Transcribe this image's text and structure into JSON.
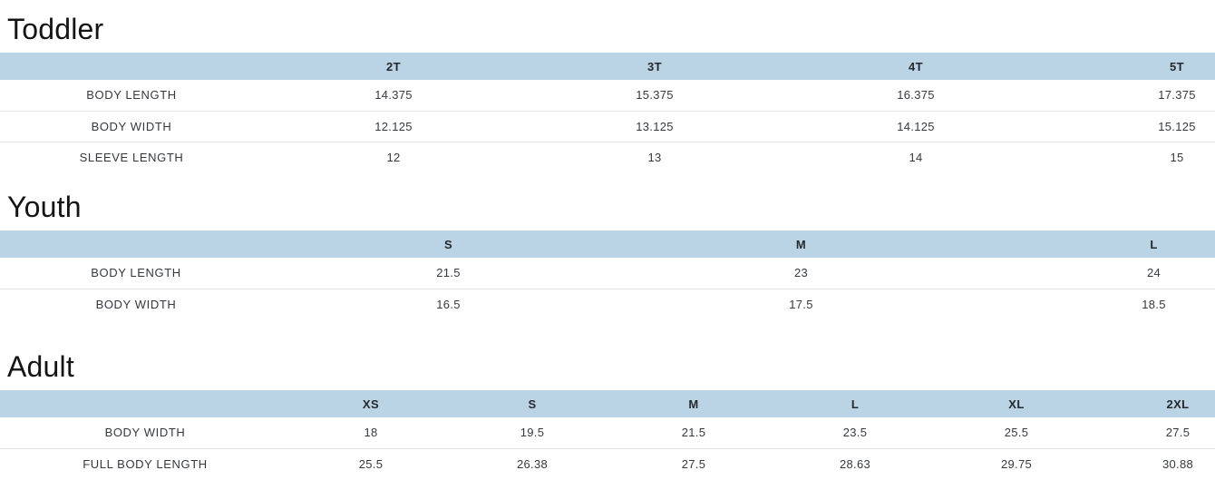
{
  "sections": [
    {
      "title": "Toddler",
      "columns": [
        "2T",
        "3T",
        "4T",
        "5T"
      ],
      "rows": [
        {
          "label": "BODY LENGTH",
          "values": [
            "14.375",
            "15.375",
            "16.375",
            "17.375"
          ]
        },
        {
          "label": "BODY WIDTH",
          "values": [
            "12.125",
            "13.125",
            "14.125",
            "15.125"
          ]
        },
        {
          "label": "SLEEVE LENGTH",
          "values": [
            "12",
            "13",
            "14",
            "15"
          ]
        }
      ]
    },
    {
      "title": "Youth",
      "columns": [
        "S",
        "M",
        "L"
      ],
      "rows": [
        {
          "label": "BODY LENGTH",
          "values": [
            "21.5",
            "23",
            "24"
          ]
        },
        {
          "label": "BODY WIDTH",
          "values": [
            "16.5",
            "17.5",
            "18.5"
          ]
        }
      ]
    },
    {
      "title": "Adult",
      "columns": [
        "XS",
        "S",
        "M",
        "L",
        "XL",
        "2XL"
      ],
      "rows": [
        {
          "label": "BODY WIDTH",
          "values": [
            "18",
            "19.5",
            "21.5",
            "23.5",
            "25.5",
            "27.5"
          ]
        },
        {
          "label": "FULL BODY LENGTH",
          "values": [
            "25.5",
            "26.38",
            "27.5",
            "28.63",
            "29.75",
            "30.88"
          ]
        }
      ]
    }
  ],
  "colors": {
    "header_background": "#bad3e5",
    "row_divider": "#e4e4e4",
    "cell_text": "#35393e",
    "heading_text": "#141414"
  }
}
